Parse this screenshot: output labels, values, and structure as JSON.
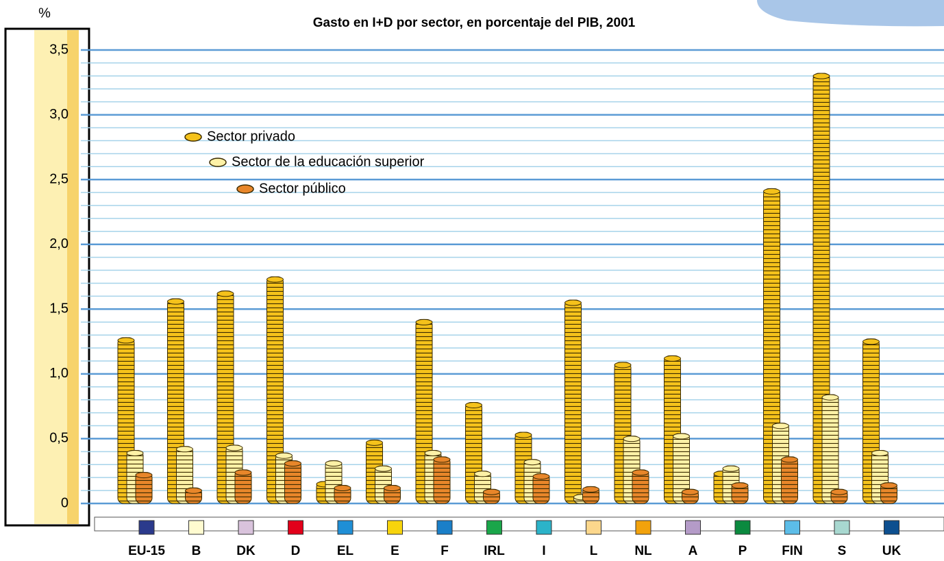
{
  "chart_data": {
    "type": "bar",
    "title": "Gasto en I+D por sector, en porcentaje del PIB, 2001",
    "y_label": "%",
    "categories": [
      "EU-15",
      "B",
      "DK",
      "D",
      "EL",
      "E",
      "F",
      "IRL",
      "I",
      "L",
      "NL",
      "A",
      "P",
      "FIN",
      "S",
      "UK"
    ],
    "category_colors": [
      "#2b3a8c",
      "#fffbd0",
      "#d9c3dc",
      "#e2001a",
      "#1f8fd6",
      "#f7d40c",
      "#1a7fc8",
      "#1aa64a",
      "#2bb3c9",
      "#fcd78c",
      "#f2a20c",
      "#b49bc8",
      "#0b8a3f",
      "#5cbde8",
      "#a8d8d0",
      "#0d4f8f"
    ],
    "series": [
      {
        "name": "Sector privado",
        "color": "#f5c21b",
        "values": [
          1.28,
          1.58,
          1.64,
          1.75,
          0.17,
          0.49,
          1.42,
          0.78,
          0.55,
          1.57,
          1.09,
          1.14,
          0.25,
          2.43,
          3.32,
          1.27
        ]
      },
      {
        "name": "Sector de la educación superior",
        "color": "#fdf1a6",
        "values": [
          0.41,
          0.44,
          0.45,
          0.39,
          0.33,
          0.29,
          0.41,
          0.25,
          0.34,
          0.07,
          0.52,
          0.54,
          0.29,
          0.62,
          0.84,
          0.41
        ]
      },
      {
        "name": "Sector público",
        "color": "#e8862a",
        "values": [
          0.24,
          0.12,
          0.26,
          0.33,
          0.14,
          0.14,
          0.36,
          0.11,
          0.23,
          0.13,
          0.26,
          0.11,
          0.16,
          0.36,
          0.11,
          0.16
        ]
      }
    ],
    "ylim": [
      0,
      3.5
    ],
    "yticks": [
      0,
      {
        "value": 0.5,
        "label": "0,5"
      },
      {
        "value": 1,
        "label": "1,0"
      },
      {
        "value": 1.5,
        "label": "1,5"
      },
      {
        "value": 2,
        "label": "2,0"
      },
      {
        "value": 2.5,
        "label": "2,5"
      },
      {
        "value": 3,
        "label": "3,0"
      },
      {
        "value": 3.5,
        "label": "3,5"
      }
    ],
    "minor_step": 0.1,
    "grid": true
  }
}
